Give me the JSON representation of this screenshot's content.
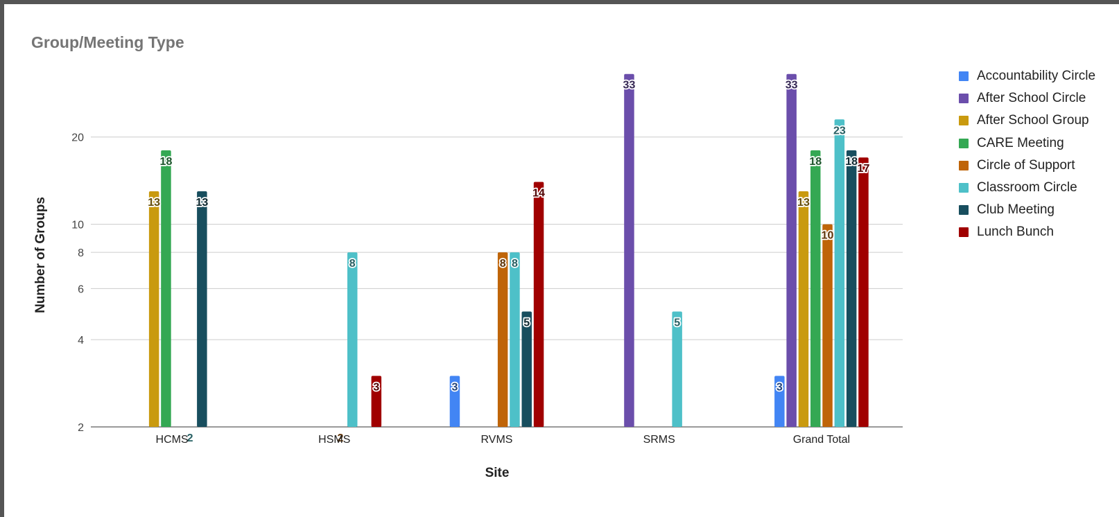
{
  "chart_data": {
    "type": "bar",
    "title": "Group/Meeting Type",
    "xlabel": "Site",
    "ylabel": "Number of Groups",
    "y_scale": "log",
    "ylim": [
      2,
      40
    ],
    "y_ticks": [
      2,
      4,
      6,
      8,
      10,
      20
    ],
    "grid": true,
    "legend_position": "right",
    "categories": [
      "HCMS",
      "HSMS",
      "RVMS",
      "SRMS",
      "Grand Total"
    ],
    "series": [
      {
        "name": "Accountability Circle",
        "color": "#4285f4",
        "values": [
          null,
          null,
          3,
          null,
          3
        ]
      },
      {
        "name": "After School Circle",
        "color": "#6b4eab",
        "values": [
          null,
          null,
          null,
          33,
          33
        ]
      },
      {
        "name": "After School Group",
        "color": "#c99a0f",
        "values": [
          13,
          null,
          null,
          null,
          13
        ]
      },
      {
        "name": "CARE Meeting",
        "color": "#34a853",
        "values": [
          18,
          null,
          null,
          null,
          18
        ]
      },
      {
        "name": "Circle of Support",
        "color": "#bf6408",
        "values": [
          null,
          2,
          8,
          null,
          10
        ]
      },
      {
        "name": "Classroom Circle",
        "color": "#4ec0c8",
        "values": [
          2,
          8,
          8,
          5,
          23
        ]
      },
      {
        "name": "Club Meeting",
        "color": "#184e5e",
        "values": [
          13,
          null,
          5,
          null,
          18
        ]
      },
      {
        "name": "Lunch Bunch",
        "color": "#a00000",
        "values": [
          null,
          3,
          14,
          null,
          17
        ]
      }
    ]
  }
}
